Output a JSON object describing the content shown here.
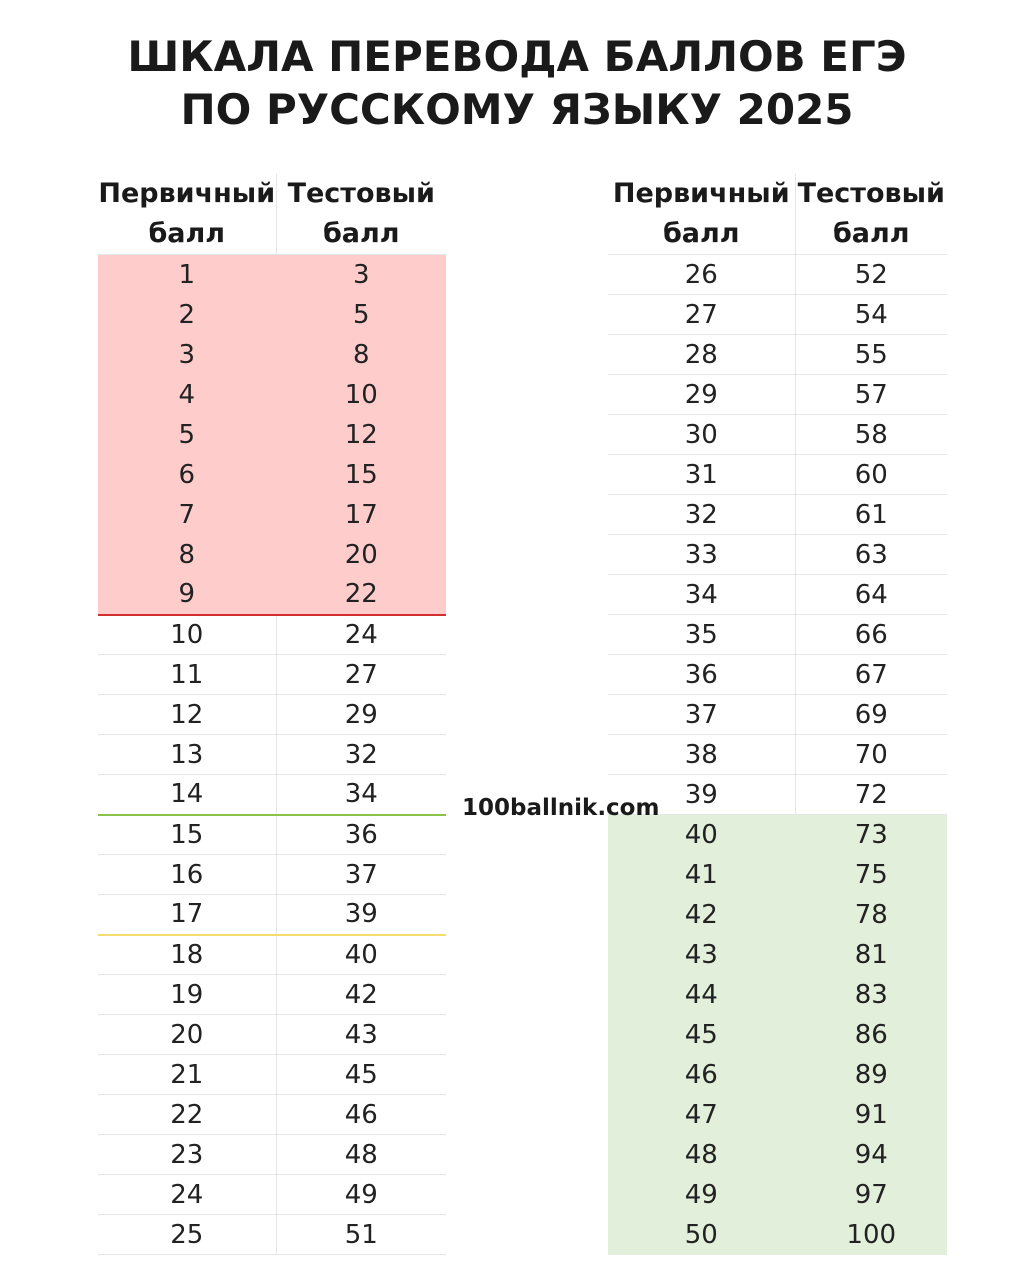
{
  "title": {
    "line1": "ШКАЛА ПЕРЕВОДА БАЛЛОВ ЕГЭ",
    "line2": "ПО РУССКОМУ ЯЗЫКУ 2025"
  },
  "headers": {
    "primary_line1": "Первичный",
    "primary_line2": "балл",
    "test_line1": "Тестовый",
    "test_line2": "балл"
  },
  "watermark": "100ballnik.com",
  "colors": {
    "fail_zone": "#ffcccc",
    "top_zone": "#e2efda",
    "fail_line": "#d32f2f",
    "green_line": "#8bc34a",
    "yellow_line": "#f5dc6e"
  },
  "left_rows": [
    {
      "primary": "1",
      "test": "3",
      "zone": "red"
    },
    {
      "primary": "2",
      "test": "5",
      "zone": "red"
    },
    {
      "primary": "3",
      "test": "8",
      "zone": "red"
    },
    {
      "primary": "4",
      "test": "10",
      "zone": "red"
    },
    {
      "primary": "5",
      "test": "12",
      "zone": "red"
    },
    {
      "primary": "6",
      "test": "15",
      "zone": "red"
    },
    {
      "primary": "7",
      "test": "17",
      "zone": "red"
    },
    {
      "primary": "8",
      "test": "20",
      "zone": "red"
    },
    {
      "primary": "9",
      "test": "22",
      "zone": "red",
      "line": "red"
    },
    {
      "primary": "10",
      "test": "24"
    },
    {
      "primary": "11",
      "test": "27"
    },
    {
      "primary": "12",
      "test": "29"
    },
    {
      "primary": "13",
      "test": "32"
    },
    {
      "primary": "14",
      "test": "34",
      "line": "green"
    },
    {
      "primary": "15",
      "test": "36"
    },
    {
      "primary": "16",
      "test": "37"
    },
    {
      "primary": "17",
      "test": "39",
      "line": "yellow"
    },
    {
      "primary": "18",
      "test": "40"
    },
    {
      "primary": "19",
      "test": "42"
    },
    {
      "primary": "20",
      "test": "43"
    },
    {
      "primary": "21",
      "test": "45"
    },
    {
      "primary": "22",
      "test": "46"
    },
    {
      "primary": "23",
      "test": "48"
    },
    {
      "primary": "24",
      "test": "49"
    },
    {
      "primary": "25",
      "test": "51"
    }
  ],
  "right_rows": [
    {
      "primary": "26",
      "test": "52"
    },
    {
      "primary": "27",
      "test": "54"
    },
    {
      "primary": "28",
      "test": "55"
    },
    {
      "primary": "29",
      "test": "57"
    },
    {
      "primary": "30",
      "test": "58"
    },
    {
      "primary": "31",
      "test": "60"
    },
    {
      "primary": "32",
      "test": "61"
    },
    {
      "primary": "33",
      "test": "63"
    },
    {
      "primary": "34",
      "test": "64"
    },
    {
      "primary": "35",
      "test": "66"
    },
    {
      "primary": "36",
      "test": "67"
    },
    {
      "primary": "37",
      "test": "69"
    },
    {
      "primary": "38",
      "test": "70"
    },
    {
      "primary": "39",
      "test": "72"
    },
    {
      "primary": "40",
      "test": "73",
      "zone": "green"
    },
    {
      "primary": "41",
      "test": "75",
      "zone": "green"
    },
    {
      "primary": "42",
      "test": "78",
      "zone": "green"
    },
    {
      "primary": "43",
      "test": "81",
      "zone": "green"
    },
    {
      "primary": "44",
      "test": "83",
      "zone": "green"
    },
    {
      "primary": "45",
      "test": "86",
      "zone": "green"
    },
    {
      "primary": "46",
      "test": "89",
      "zone": "green"
    },
    {
      "primary": "47",
      "test": "91",
      "zone": "green"
    },
    {
      "primary": "48",
      "test": "94",
      "zone": "green"
    },
    {
      "primary": "49",
      "test": "97",
      "zone": "green"
    },
    {
      "primary": "50",
      "test": "100",
      "zone": "green"
    }
  ]
}
